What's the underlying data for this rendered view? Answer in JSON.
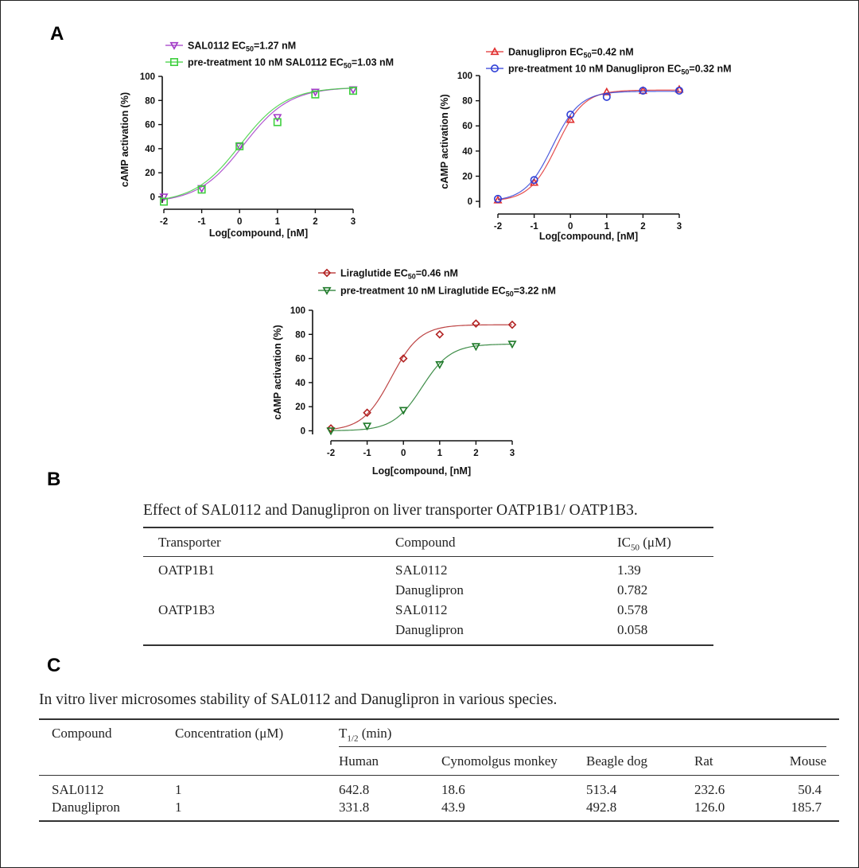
{
  "panels": {
    "a": "A",
    "b": "B",
    "c": "C"
  },
  "chart_data": [
    {
      "type": "line",
      "id": "sal0112",
      "xlabel": "Log[compound, [nM]",
      "ylabel": "cAMP activation (%)",
      "xlim": [
        -2,
        3
      ],
      "ylim": [
        -5,
        100
      ],
      "xticks": [
        -2,
        -1,
        0,
        1,
        2,
        3
      ],
      "yticks": [
        0,
        20,
        40,
        60,
        80,
        100
      ],
      "legend_position": "top",
      "series": [
        {
          "name": "SAL0112 EC50=1.27 nM",
          "label_main": "SAL0112 EC",
          "label_sub": "50",
          "label_tail": "=1.27 nM",
          "color": "#a23bc7",
          "marker": "triangle-down",
          "x": [
            -2,
            -1,
            0,
            1,
            2,
            3
          ],
          "y": [
            0,
            7,
            42,
            66,
            87,
            89
          ],
          "fit": {
            "bottom": -5,
            "top": 91,
            "logec50": 0.104,
            "hill": 0.72
          }
        },
        {
          "name": "pre-treatment 10 nM SAL0112 EC50=1.03 nM",
          "label_main": "pre-treatment 10 nM SAL0112 EC",
          "label_sub": "50",
          "label_tail": "=1.03 nM",
          "color": "#3ecf3e",
          "marker": "square",
          "x": [
            -2,
            -1,
            0,
            1,
            2,
            3
          ],
          "y": [
            -4,
            6,
            42,
            62,
            85,
            88
          ],
          "fit": {
            "bottom": -5,
            "top": 91,
            "logec50": 0.013,
            "hill": 0.72
          }
        }
      ]
    },
    {
      "type": "line",
      "id": "danuglipron",
      "xlabel": "Log[compound, [nM]",
      "ylabel": "cAMP activation (%)",
      "xlim": [
        -2,
        3
      ],
      "ylim": [
        -5,
        100
      ],
      "xticks": [
        -2,
        -1,
        0,
        1,
        2,
        3
      ],
      "yticks": [
        0,
        20,
        40,
        60,
        80,
        100
      ],
      "legend_position": "top",
      "series": [
        {
          "name": "Danuglipron EC50=0.42 nM",
          "label_main": "Danuglipron EC",
          "label_sub": "50",
          "label_tail": "=0.42 nM",
          "color": "#e03030",
          "marker": "triangle-up",
          "x": [
            -2,
            -1,
            0,
            1,
            2,
            3
          ],
          "y": [
            1,
            15,
            65,
            87,
            88,
            89
          ],
          "fit": {
            "bottom": 0,
            "top": 88.5,
            "logec50": -0.377,
            "hill": 1.15
          }
        },
        {
          "name": "pre-treatment 10 nM Danuglipron EC50=0.32 nM",
          "label_main": "pre-treatment 10 nM  Danuglipron EC",
          "label_sub": "50",
          "label_tail": "=0.32 nM",
          "color": "#2f3fd6",
          "marker": "circle",
          "x": [
            -2,
            -1,
            0,
            1,
            2,
            3
          ],
          "y": [
            2,
            17,
            69,
            83,
            88,
            88
          ],
          "fit": {
            "bottom": 0,
            "top": 87.5,
            "logec50": -0.495,
            "hill": 1.15
          }
        }
      ]
    },
    {
      "type": "line",
      "id": "liraglutide",
      "xlabel": "Log[compound, [nM]",
      "ylabel": "cAMP activation (%)",
      "xlim": [
        -2,
        3
      ],
      "ylim": [
        -3,
        100
      ],
      "xticks": [
        -2,
        -1,
        0,
        1,
        2,
        3
      ],
      "yticks": [
        0,
        20,
        40,
        60,
        80,
        100
      ],
      "legend_position": "top",
      "series": [
        {
          "name": "Liraglutide EC50=0.46 nM",
          "label_main": "Liraglutide  EC",
          "label_sub": "50",
          "label_tail": "=0.46 nM",
          "color": "#b22222",
          "marker": "diamond",
          "x": [
            -2,
            -1,
            0,
            1,
            2,
            3
          ],
          "y": [
            2,
            15,
            60,
            80,
            89,
            88
          ],
          "fit": {
            "bottom": 0,
            "top": 88,
            "logec50": -0.337,
            "hill": 1.1
          }
        },
        {
          "name": "pre-treatment 10 nM Liraglutide EC50=3.22 nM",
          "label_main": "pre-treatment 10 nM  Liraglutide  EC",
          "label_sub": "50",
          "label_tail": "=3.22 nM",
          "color": "#1f7a2a",
          "marker": "triangle-down",
          "x": [
            -2,
            -1,
            0,
            1,
            2,
            3
          ],
          "y": [
            0,
            4,
            17,
            55,
            70,
            72
          ],
          "fit": {
            "bottom": 0,
            "top": 72,
            "logec50": 0.508,
            "hill": 1.1
          }
        }
      ]
    }
  ],
  "table_b": {
    "title": "Effect of SAL0112 and Danuglipron on liver transporter OATP1B1/ OATP1B3.",
    "headers": {
      "transporter": "Transporter",
      "compound": "Compound",
      "ic50_main": "IC",
      "ic50_sub": "50",
      "ic50_unit": " (μM)"
    },
    "rows": [
      {
        "transporter": "OATP1B1",
        "compound": "SAL0112",
        "ic50": "1.39"
      },
      {
        "transporter": "",
        "compound": "Danuglipron",
        "ic50": "0.782"
      },
      {
        "transporter": "OATP1B3",
        "compound": "SAL0112",
        "ic50": "0.578"
      },
      {
        "transporter": "",
        "compound": "Danuglipron",
        "ic50": "0.058"
      }
    ]
  },
  "table_c": {
    "title": "In vitro liver microsomes stability of SAL0112 and Danuglipron in various species.",
    "headers": {
      "compound": "Compound",
      "concentration": "Concentration (μM)",
      "t_main": "T",
      "t_sub": "1/2",
      "t_unit": " (min)"
    },
    "species": [
      "Human",
      "Cynomolgus monkey",
      "Beagle dog",
      "Rat",
      "Mouse"
    ],
    "rows": [
      {
        "compound": "SAL0112",
        "concentration": "1",
        "values": [
          "642.8",
          "18.6",
          "513.4",
          "232.6",
          "50.4"
        ]
      },
      {
        "compound": "Danuglipron",
        "concentration": "1",
        "values": [
          "331.8",
          "43.9",
          "492.8",
          "126.0",
          "185.7"
        ]
      }
    ]
  }
}
